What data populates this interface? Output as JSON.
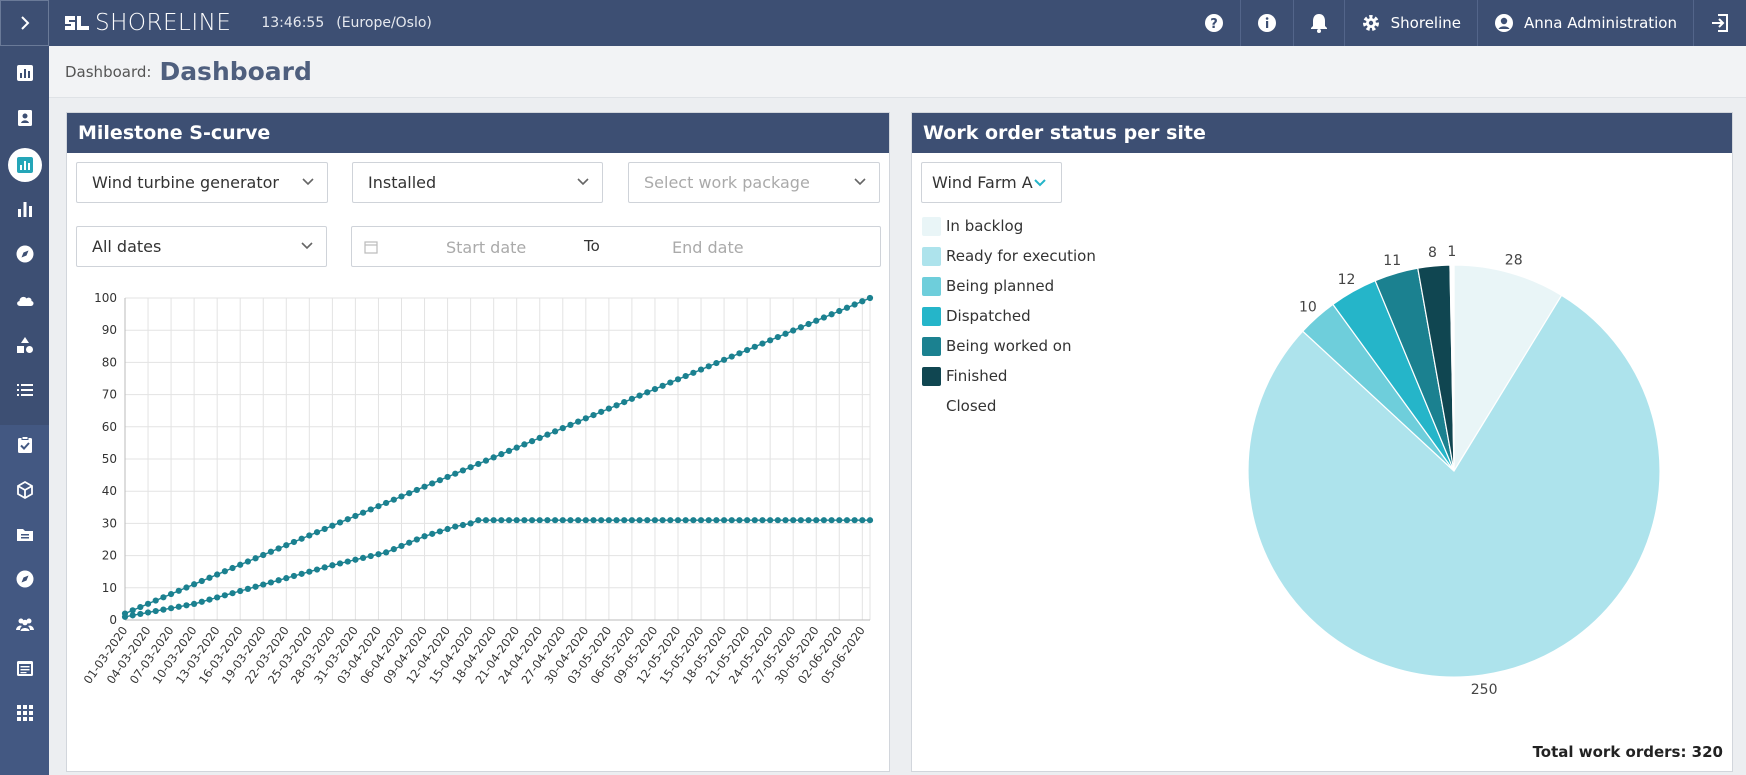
{
  "app": {
    "brand": "SHORELINE",
    "clock": "13:46:55",
    "timezone": "(Europe/Oslo)",
    "tenant": "Shoreline",
    "user": "Anna Administration"
  },
  "sidebar": {
    "items": [
      {
        "icon": "bar-chart-square-icon"
      },
      {
        "icon": "contact-card-icon"
      },
      {
        "icon": "dashboard-icon",
        "active": true
      },
      {
        "icon": "bar-chart-icon"
      },
      {
        "icon": "compass-icon"
      },
      {
        "icon": "cloud-icon"
      },
      {
        "icon": "shapes-icon"
      },
      {
        "icon": "list-icon"
      },
      {
        "icon": "task-check-icon"
      },
      {
        "icon": "package-icon"
      },
      {
        "icon": "folder-icon"
      },
      {
        "icon": "compass-icon"
      },
      {
        "icon": "people-icon"
      },
      {
        "icon": "calendar-list-icon"
      },
      {
        "icon": "apps-grid-icon"
      }
    ]
  },
  "breadcrumb": {
    "label": "Dashboard:",
    "title": "Dashboard"
  },
  "scurve": {
    "title": "Milestone S-curve",
    "filter_type": "Wind turbine generator",
    "filter_status": "Installed",
    "work_package_placeholder": "Select work package",
    "date_filter": "All dates",
    "start_placeholder": "Start date",
    "to_label": "To",
    "end_placeholder": "End date"
  },
  "workorders": {
    "title": "Work order status per site",
    "site": "Wind Farm A",
    "total_label": "Total work orders: 320"
  },
  "chart_data": [
    {
      "type": "line",
      "title": "Milestone S-curve",
      "xlabel": "",
      "ylabel": "",
      "ylim": [
        0,
        100
      ],
      "grid": true,
      "x_start": "01-03-2020",
      "x_end": "06-06-2020",
      "x_tick_labels": [
        "01-03-2020",
        "04-03-2020",
        "07-03-2020",
        "10-03-2020",
        "13-03-2020",
        "16-03-2020",
        "19-03-2020",
        "22-03-2020",
        "25-03-2020",
        "28-03-2020",
        "31-03-2020",
        "03-04-2020",
        "06-04-2020",
        "09-04-2020",
        "12-04-2020",
        "15-04-2020",
        "18-04-2020",
        "21-04-2020",
        "24-04-2020",
        "27-04-2020",
        "30-04-2020",
        "03-05-2020",
        "06-05-2020",
        "09-05-2020",
        "12-05-2020",
        "15-05-2020",
        "18-05-2020",
        "21-05-2020",
        "24-05-2020",
        "27-05-2020",
        "30-05-2020",
        "02-06-2020",
        "05-06-2020"
      ],
      "y_ticks": [
        0,
        10,
        20,
        30,
        40,
        50,
        60,
        70,
        80,
        90,
        100
      ],
      "series": [
        {
          "points": [
            [
              "01-03-2020",
              2
            ],
            [
              "06-06-2020",
              100
            ]
          ],
          "shape": "linear"
        },
        {
          "points": [
            [
              "01-03-2020",
              1
            ],
            [
              "10-03-2020",
              5
            ],
            [
              "19-03-2020",
              11
            ],
            [
              "28-03-2020",
              17
            ],
            [
              "04-04-2020",
              21
            ],
            [
              "09-04-2020",
              26
            ],
            [
              "13-04-2020",
              29
            ],
            [
              "15-04-2020",
              30
            ],
            [
              "16-04-2020",
              31
            ],
            [
              "06-06-2020",
              31
            ]
          ],
          "shape": "piecewise"
        }
      ]
    },
    {
      "type": "pie",
      "title": "Work order status per site",
      "slices": [
        {
          "label": "In backlog",
          "value": 28,
          "color": "#e9f5f7"
        },
        {
          "label": "Ready for execution",
          "value": 250,
          "color": "#ade3ec"
        },
        {
          "label": "Being planned",
          "value": 10,
          "color": "#6ecedb"
        },
        {
          "label": "Dispatched",
          "value": 12,
          "color": "#25b5c9"
        },
        {
          "label": "Being worked on",
          "value": 11,
          "color": "#1b8190"
        },
        {
          "label": "Finished",
          "value": 8,
          "color": "#104651"
        },
        {
          "label": "Closed",
          "value": 1,
          "color": "#ffffff"
        }
      ],
      "legend_placement": "left"
    }
  ]
}
